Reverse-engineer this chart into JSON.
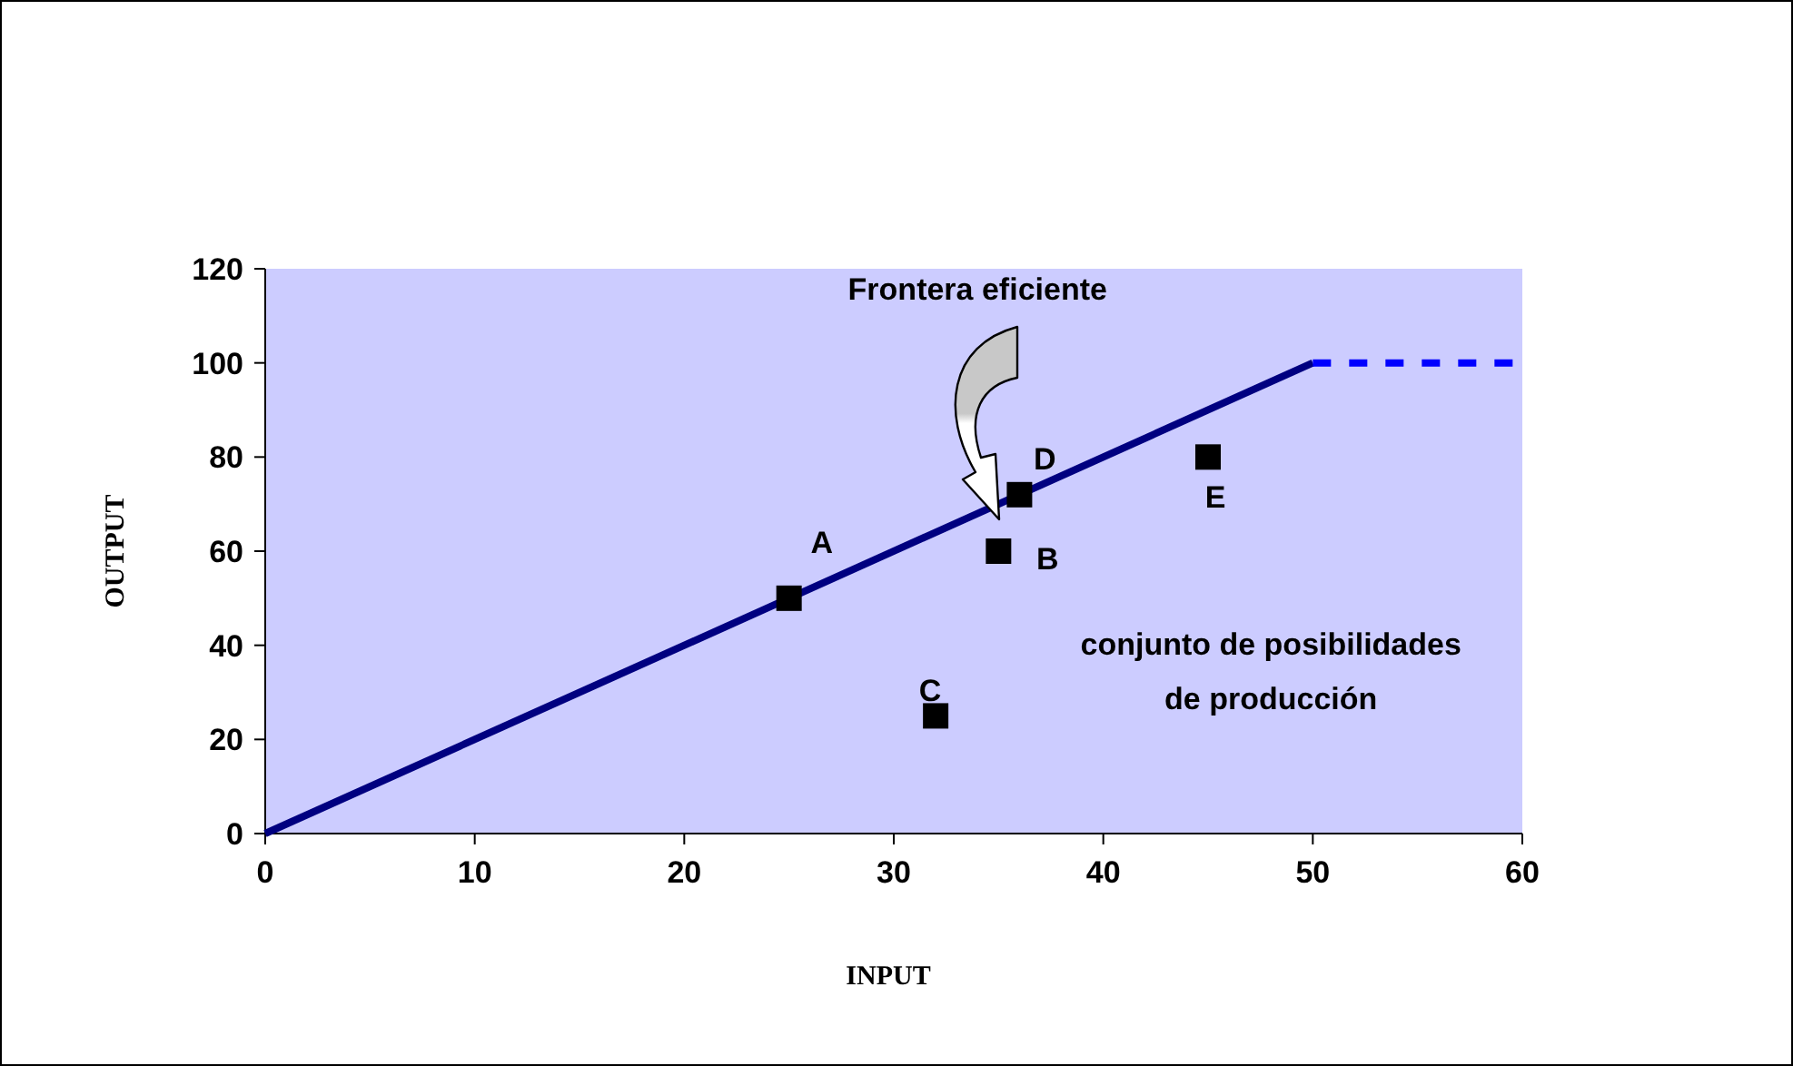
{
  "chart_data": {
    "type": "scatter",
    "xlabel": "INPUT",
    "ylabel": "OUTPUT",
    "xlim": [
      0,
      60
    ],
    "ylim": [
      0,
      120
    ],
    "xticks": [
      0,
      10,
      20,
      30,
      40,
      50,
      60
    ],
    "yticks": [
      0,
      20,
      40,
      60,
      80,
      100,
      120
    ],
    "grid": false,
    "series": [
      {
        "type": "line",
        "x": [
          0,
          50
        ],
        "values": [
          0,
          100
        ],
        "color": "#000080",
        "line_style": "solid"
      },
      {
        "type": "line",
        "x": [
          50,
          60
        ],
        "values": [
          100,
          100
        ],
        "color": "#0000ff",
        "line_style": "dashed"
      },
      {
        "type": "scatter",
        "x": [
          25,
          35,
          32,
          36,
          45
        ],
        "values": [
          50,
          60,
          25,
          72,
          80
        ],
        "color": "#000000",
        "marker": "square"
      }
    ],
    "annotations": [
      "Frontera eficiente",
      "conjunto de posibilidades de producción",
      {
        "text": "A",
        "x": 25,
        "y": 50
      },
      {
        "text": "B",
        "x": 35,
        "y": 60
      },
      {
        "text": "C",
        "x": 32,
        "y": 25
      },
      {
        "text": "D",
        "x": 36,
        "y": 72
      },
      {
        "text": "E",
        "x": 45,
        "y": 80
      }
    ]
  }
}
